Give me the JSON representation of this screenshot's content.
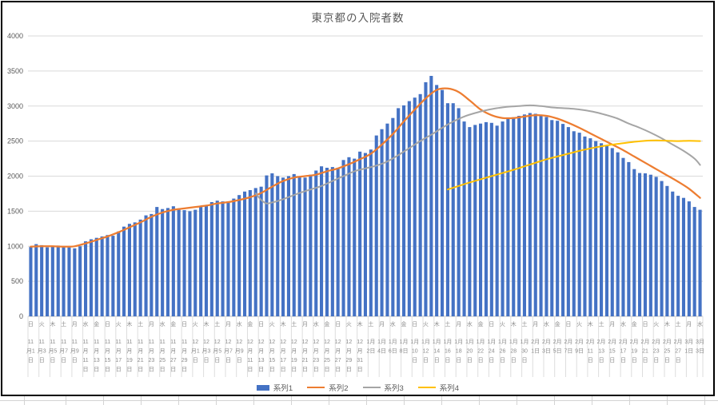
{
  "chart_data": {
    "type": "bar",
    "title": "東京都の入院者数",
    "ylim": [
      0,
      4000
    ],
    "y_step": 500,
    "grid": true,
    "legend_position": "bottom",
    "x_unit": "daily, index 0 = 11月1日",
    "label_interval": 2,
    "x_labels": [
      [
        "日",
        "11月1日"
      ],
      [
        "火",
        "11月3日"
      ],
      [
        "木",
        "11月5日"
      ],
      [
        "土",
        "11月7日"
      ],
      [
        "月",
        "11月9日"
      ],
      [
        "水",
        "11月11日"
      ],
      [
        "金",
        "11月13日"
      ],
      [
        "日",
        "11月15日"
      ],
      [
        "火",
        "11月17日"
      ],
      [
        "木",
        "11月19日"
      ],
      [
        "土",
        "11月21日"
      ],
      [
        "月",
        "11月23日"
      ],
      [
        "水",
        "11月25日"
      ],
      [
        "金",
        "11月27日"
      ],
      [
        "日",
        "11月29日"
      ],
      [
        "火",
        "12月1日"
      ],
      [
        "木",
        "12月3日"
      ],
      [
        "土",
        "12月5日"
      ],
      [
        "月",
        "12月7日"
      ],
      [
        "水",
        "12月9日"
      ],
      [
        "金",
        "12月11日"
      ],
      [
        "日",
        "12月13日"
      ],
      [
        "火",
        "12月15日"
      ],
      [
        "木",
        "12月17日"
      ],
      [
        "土",
        "12月19日"
      ],
      [
        "月",
        "12月21日"
      ],
      [
        "水",
        "12月23日"
      ],
      [
        "金",
        "12月25日"
      ],
      [
        "日",
        "12月27日"
      ],
      [
        "火",
        "12月29日"
      ],
      [
        "木",
        "12月31日"
      ],
      [
        "土",
        "1月2日"
      ],
      [
        "月",
        "1月4日"
      ],
      [
        "水",
        "1月6日"
      ],
      [
        "金",
        "1月8日"
      ],
      [
        "日",
        "1月10日"
      ],
      [
        "火",
        "1月12日"
      ],
      [
        "木",
        "1月14日"
      ],
      [
        "土",
        "1月16日"
      ],
      [
        "月",
        "1月18日"
      ],
      [
        "水",
        "1月20日"
      ],
      [
        "金",
        "1月22日"
      ],
      [
        "日",
        "1月24日"
      ],
      [
        "火",
        "1月26日"
      ],
      [
        "木",
        "1月28日"
      ],
      [
        "土",
        "1月30日"
      ],
      [
        "月",
        "2月1日"
      ],
      [
        "水",
        "2月3日"
      ],
      [
        "金",
        "2月5日"
      ],
      [
        "日",
        "2月7日"
      ],
      [
        "火",
        "2月9日"
      ],
      [
        "木",
        "2月11日"
      ],
      [
        "土",
        "2月13日"
      ],
      [
        "月",
        "2月15日"
      ],
      [
        "水",
        "2月17日"
      ],
      [
        "金",
        "2月19日"
      ],
      [
        "日",
        "2月21日"
      ],
      [
        "火",
        "2月23日"
      ],
      [
        "木",
        "2月25日"
      ],
      [
        "土",
        "2月27日"
      ],
      [
        "月",
        "3月1日"
      ],
      [
        "水",
        "3月3日"
      ]
    ],
    "series": [
      {
        "name": "系列1",
        "type": "bar",
        "color": "#4472C4",
        "values": [
          990,
          1030,
          1015,
          985,
          1005,
          1010,
          1000,
          985,
          970,
          1000,
          1070,
          1100,
          1120,
          1140,
          1160,
          1150,
          1210,
          1280,
          1320,
          1340,
          1380,
          1440,
          1460,
          1560,
          1530,
          1545,
          1570,
          1520,
          1515,
          1500,
          1520,
          1560,
          1590,
          1630,
          1650,
          1640,
          1630,
          1680,
          1730,
          1780,
          1800,
          1830,
          1850,
          2010,
          2040,
          2000,
          1980,
          2000,
          2030,
          1990,
          1980,
          2020,
          2080,
          2140,
          2120,
          2130,
          2120,
          2230,
          2270,
          2250,
          2350,
          2330,
          2380,
          2580,
          2670,
          2750,
          2830,
          2970,
          3010,
          3070,
          3120,
          3170,
          3340,
          3430,
          3300,
          3230,
          3040,
          3040,
          2970,
          2780,
          2700,
          2730,
          2750,
          2770,
          2760,
          2720,
          2780,
          2820,
          2840,
          2860,
          2880,
          2900,
          2890,
          2860,
          2845,
          2800,
          2790,
          2745,
          2700,
          2640,
          2620,
          2565,
          2540,
          2500,
          2470,
          2430,
          2400,
          2340,
          2260,
          2200,
          2100,
          2045,
          2040,
          2020,
          1990,
          1930,
          1860,
          1780,
          1720,
          1690,
          1640,
          1560,
          1520
        ]
      },
      {
        "name": "系列2",
        "type": "line",
        "color": "#ED7D31",
        "points": [
          [
            0,
            995
          ],
          [
            2,
            1000
          ],
          [
            4,
            1000
          ],
          [
            6,
            995
          ],
          [
            8,
            1000
          ],
          [
            10,
            1040
          ],
          [
            12,
            1090
          ],
          [
            14,
            1140
          ],
          [
            16,
            1200
          ],
          [
            18,
            1270
          ],
          [
            20,
            1340
          ],
          [
            22,
            1420
          ],
          [
            24,
            1480
          ],
          [
            26,
            1520
          ],
          [
            28,
            1540
          ],
          [
            30,
            1560
          ],
          [
            32,
            1580
          ],
          [
            34,
            1610
          ],
          [
            36,
            1630
          ],
          [
            38,
            1660
          ],
          [
            40,
            1700
          ],
          [
            42,
            1760
          ],
          [
            44,
            1850
          ],
          [
            46,
            1930
          ],
          [
            48,
            1980
          ],
          [
            50,
            2000
          ],
          [
            52,
            2020
          ],
          [
            54,
            2070
          ],
          [
            56,
            2110
          ],
          [
            58,
            2170
          ],
          [
            60,
            2240
          ],
          [
            62,
            2320
          ],
          [
            64,
            2450
          ],
          [
            66,
            2600
          ],
          [
            68,
            2780
          ],
          [
            70,
            2950
          ],
          [
            72,
            3110
          ],
          [
            74,
            3230
          ],
          [
            76,
            3250
          ],
          [
            78,
            3200
          ],
          [
            80,
            3080
          ],
          [
            82,
            2950
          ],
          [
            84,
            2870
          ],
          [
            86,
            2830
          ],
          [
            88,
            2830
          ],
          [
            90,
            2850
          ],
          [
            92,
            2870
          ],
          [
            94,
            2860
          ],
          [
            96,
            2820
          ],
          [
            98,
            2760
          ],
          [
            100,
            2690
          ],
          [
            102,
            2610
          ],
          [
            104,
            2530
          ],
          [
            106,
            2450
          ],
          [
            108,
            2370
          ],
          [
            110,
            2280
          ],
          [
            112,
            2190
          ],
          [
            114,
            2100
          ],
          [
            116,
            2010
          ],
          [
            118,
            1920
          ],
          [
            120,
            1820
          ],
          [
            122,
            1690
          ]
        ]
      },
      {
        "name": "系列3",
        "type": "line",
        "color": "#A5A5A5",
        "points": [
          [
            41,
            1755
          ],
          [
            42,
            1660
          ],
          [
            43,
            1610
          ],
          [
            44,
            1625
          ],
          [
            45,
            1645
          ],
          [
            47,
            1700
          ],
          [
            49,
            1760
          ],
          [
            51,
            1810
          ],
          [
            53,
            1860
          ],
          [
            55,
            1930
          ],
          [
            57,
            2000
          ],
          [
            59,
            2070
          ],
          [
            61,
            2110
          ],
          [
            63,
            2150
          ],
          [
            65,
            2210
          ],
          [
            67,
            2300
          ],
          [
            69,
            2400
          ],
          [
            71,
            2500
          ],
          [
            73,
            2590
          ],
          [
            75,
            2690
          ],
          [
            77,
            2780
          ],
          [
            79,
            2850
          ],
          [
            81,
            2900
          ],
          [
            83,
            2940
          ],
          [
            85,
            2970
          ],
          [
            87,
            2990
          ],
          [
            89,
            3000
          ],
          [
            91,
            3010
          ],
          [
            93,
            3000
          ],
          [
            95,
            2980
          ],
          [
            97,
            2970
          ],
          [
            99,
            2960
          ],
          [
            101,
            2940
          ],
          [
            103,
            2910
          ],
          [
            105,
            2870
          ],
          [
            107,
            2820
          ],
          [
            109,
            2750
          ],
          [
            111,
            2690
          ],
          [
            113,
            2620
          ],
          [
            115,
            2540
          ],
          [
            117,
            2450
          ],
          [
            119,
            2360
          ],
          [
            121,
            2250
          ],
          [
            122,
            2160
          ]
        ]
      },
      {
        "name": "系列4",
        "type": "line",
        "color": "#FFC000",
        "points": [
          [
            76,
            1810
          ],
          [
            78,
            1860
          ],
          [
            80,
            1910
          ],
          [
            82,
            1955
          ],
          [
            84,
            2000
          ],
          [
            86,
            2045
          ],
          [
            88,
            2090
          ],
          [
            90,
            2140
          ],
          [
            92,
            2190
          ],
          [
            94,
            2240
          ],
          [
            96,
            2280
          ],
          [
            98,
            2320
          ],
          [
            100,
            2360
          ],
          [
            102,
            2395
          ],
          [
            104,
            2425
          ],
          [
            106,
            2450
          ],
          [
            108,
            2470
          ],
          [
            110,
            2490
          ],
          [
            112,
            2505
          ],
          [
            114,
            2510
          ],
          [
            116,
            2505
          ],
          [
            118,
            2500
          ],
          [
            120,
            2505
          ],
          [
            122,
            2500
          ]
        ]
      }
    ]
  }
}
